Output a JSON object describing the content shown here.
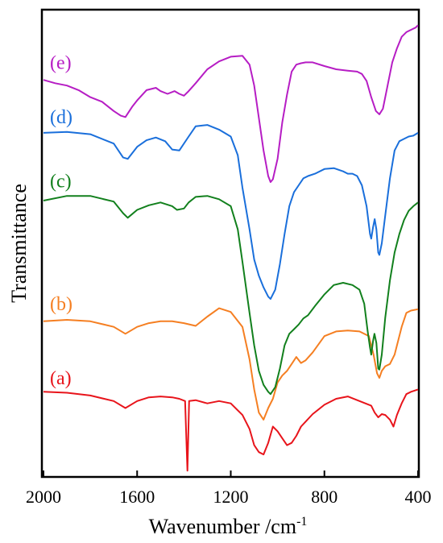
{
  "chart_data": {
    "type": "line",
    "title": "",
    "xlabel": "Wavenumber /cm-1",
    "xlabel_main": "Wavenumber /cm",
    "xlabel_sup": "-1",
    "ylabel": "Transmittance",
    "xlim": [
      2000,
      400
    ],
    "x_reversed": true,
    "x_ticks": [
      2000,
      1600,
      1200,
      800,
      400
    ],
    "y_ticks_shown": false,
    "grid": false,
    "legend": "inline labels at left",
    "series": [
      {
        "name": "(a)",
        "color": "#e8141b",
        "label_anchor": 0.825,
        "points": [
          [
            2000,
            0.82
          ],
          [
            1900,
            0.822
          ],
          [
            1800,
            0.828
          ],
          [
            1700,
            0.84
          ],
          [
            1650,
            0.855
          ],
          [
            1600,
            0.84
          ],
          [
            1550,
            0.832
          ],
          [
            1500,
            0.83
          ],
          [
            1450,
            0.832
          ],
          [
            1420,
            0.835
          ],
          [
            1395,
            0.84
          ],
          [
            1385,
            0.99
          ],
          [
            1378,
            0.84
          ],
          [
            1350,
            0.838
          ],
          [
            1300,
            0.845
          ],
          [
            1250,
            0.84
          ],
          [
            1200,
            0.845
          ],
          [
            1150,
            0.87
          ],
          [
            1120,
            0.9
          ],
          [
            1100,
            0.935
          ],
          [
            1080,
            0.95
          ],
          [
            1060,
            0.955
          ],
          [
            1040,
            0.93
          ],
          [
            1020,
            0.895
          ],
          [
            1000,
            0.905
          ],
          [
            980,
            0.92
          ],
          [
            960,
            0.935
          ],
          [
            940,
            0.93
          ],
          [
            920,
            0.915
          ],
          [
            900,
            0.895
          ],
          [
            850,
            0.868
          ],
          [
            800,
            0.848
          ],
          [
            750,
            0.835
          ],
          [
            700,
            0.83
          ],
          [
            650,
            0.84
          ],
          [
            600,
            0.85
          ],
          [
            585,
            0.865
          ],
          [
            570,
            0.875
          ],
          [
            555,
            0.868
          ],
          [
            540,
            0.87
          ],
          [
            520,
            0.88
          ],
          [
            505,
            0.895
          ],
          [
            490,
            0.87
          ],
          [
            470,
            0.845
          ],
          [
            450,
            0.825
          ],
          [
            430,
            0.82
          ],
          [
            400,
            0.815
          ]
        ]
      },
      {
        "name": "(b)",
        "color": "#f57f22",
        "label_anchor": 0.665,
        "points": [
          [
            2000,
            0.668
          ],
          [
            1900,
            0.665
          ],
          [
            1800,
            0.668
          ],
          [
            1700,
            0.68
          ],
          [
            1650,
            0.695
          ],
          [
            1600,
            0.68
          ],
          [
            1550,
            0.672
          ],
          [
            1500,
            0.668
          ],
          [
            1450,
            0.668
          ],
          [
            1400,
            0.672
          ],
          [
            1350,
            0.678
          ],
          [
            1300,
            0.658
          ],
          [
            1250,
            0.64
          ],
          [
            1200,
            0.648
          ],
          [
            1150,
            0.68
          ],
          [
            1120,
            0.75
          ],
          [
            1100,
            0.815
          ],
          [
            1080,
            0.865
          ],
          [
            1060,
            0.88
          ],
          [
            1040,
            0.855
          ],
          [
            1020,
            0.835
          ],
          [
            1000,
            0.8
          ],
          [
            980,
            0.785
          ],
          [
            960,
            0.775
          ],
          [
            940,
            0.76
          ],
          [
            920,
            0.745
          ],
          [
            900,
            0.758
          ],
          [
            880,
            0.752
          ],
          [
            850,
            0.735
          ],
          [
            800,
            0.7
          ],
          [
            750,
            0.69
          ],
          [
            700,
            0.688
          ],
          [
            650,
            0.69
          ],
          [
            610,
            0.7
          ],
          [
            590,
            0.74
          ],
          [
            575,
            0.78
          ],
          [
            565,
            0.79
          ],
          [
            555,
            0.775
          ],
          [
            540,
            0.765
          ],
          [
            520,
            0.76
          ],
          [
            500,
            0.74
          ],
          [
            470,
            0.68
          ],
          [
            450,
            0.65
          ],
          [
            430,
            0.645
          ],
          [
            400,
            0.642
          ]
        ]
      },
      {
        "name": "(c)",
        "color": "#12801d",
        "label_anchor": 0.4,
        "points": [
          [
            2000,
            0.408
          ],
          [
            1900,
            0.398
          ],
          [
            1800,
            0.398
          ],
          [
            1700,
            0.41
          ],
          [
            1660,
            0.435
          ],
          [
            1640,
            0.445
          ],
          [
            1600,
            0.428
          ],
          [
            1550,
            0.418
          ],
          [
            1500,
            0.412
          ],
          [
            1450,
            0.42
          ],
          [
            1430,
            0.428
          ],
          [
            1400,
            0.425
          ],
          [
            1380,
            0.412
          ],
          [
            1350,
            0.4
          ],
          [
            1300,
            0.398
          ],
          [
            1250,
            0.405
          ],
          [
            1200,
            0.42
          ],
          [
            1170,
            0.47
          ],
          [
            1150,
            0.54
          ],
          [
            1120,
            0.65
          ],
          [
            1100,
            0.72
          ],
          [
            1080,
            0.775
          ],
          [
            1060,
            0.805
          ],
          [
            1040,
            0.82
          ],
          [
            1030,
            0.825
          ],
          [
            1010,
            0.81
          ],
          [
            990,
            0.77
          ],
          [
            970,
            0.72
          ],
          [
            950,
            0.695
          ],
          [
            930,
            0.685
          ],
          [
            910,
            0.675
          ],
          [
            890,
            0.662
          ],
          [
            870,
            0.655
          ],
          [
            840,
            0.635
          ],
          [
            800,
            0.61
          ],
          [
            760,
            0.59
          ],
          [
            720,
            0.585
          ],
          [
            680,
            0.59
          ],
          [
            650,
            0.6
          ],
          [
            630,
            0.63
          ],
          [
            615,
            0.69
          ],
          [
            605,
            0.725
          ],
          [
            600,
            0.74
          ],
          [
            592,
            0.71
          ],
          [
            586,
            0.695
          ],
          [
            578,
            0.715
          ],
          [
            570,
            0.77
          ],
          [
            565,
            0.772
          ],
          [
            555,
            0.74
          ],
          [
            540,
            0.66
          ],
          [
            520,
            0.58
          ],
          [
            500,
            0.52
          ],
          [
            480,
            0.48
          ],
          [
            460,
            0.45
          ],
          [
            440,
            0.43
          ],
          [
            420,
            0.42
          ],
          [
            400,
            0.412
          ]
        ]
      },
      {
        "name": "(d)",
        "color": "#1a6fdb",
        "label_anchor": 0.262,
        "points": [
          [
            2000,
            0.262
          ],
          [
            1900,
            0.26
          ],
          [
            1800,
            0.265
          ],
          [
            1700,
            0.285
          ],
          [
            1660,
            0.315
          ],
          [
            1640,
            0.318
          ],
          [
            1600,
            0.292
          ],
          [
            1560,
            0.278
          ],
          [
            1520,
            0.272
          ],
          [
            1480,
            0.28
          ],
          [
            1450,
            0.298
          ],
          [
            1420,
            0.3
          ],
          [
            1380,
            0.27
          ],
          [
            1350,
            0.248
          ],
          [
            1300,
            0.245
          ],
          [
            1250,
            0.255
          ],
          [
            1200,
            0.27
          ],
          [
            1170,
            0.31
          ],
          [
            1150,
            0.38
          ],
          [
            1120,
            0.47
          ],
          [
            1100,
            0.535
          ],
          [
            1080,
            0.57
          ],
          [
            1060,
            0.595
          ],
          [
            1040,
            0.615
          ],
          [
            1030,
            0.62
          ],
          [
            1010,
            0.6
          ],
          [
            990,
            0.545
          ],
          [
            970,
            0.48
          ],
          [
            950,
            0.42
          ],
          [
            930,
            0.39
          ],
          [
            910,
            0.375
          ],
          [
            890,
            0.36
          ],
          [
            870,
            0.355
          ],
          [
            840,
            0.35
          ],
          [
            800,
            0.34
          ],
          [
            760,
            0.338
          ],
          [
            720,
            0.345
          ],
          [
            700,
            0.35
          ],
          [
            680,
            0.35
          ],
          [
            660,
            0.355
          ],
          [
            640,
            0.375
          ],
          [
            620,
            0.42
          ],
          [
            605,
            0.48
          ],
          [
            600,
            0.49
          ],
          [
            592,
            0.465
          ],
          [
            585,
            0.448
          ],
          [
            578,
            0.47
          ],
          [
            570,
            0.52
          ],
          [
            565,
            0.525
          ],
          [
            555,
            0.5
          ],
          [
            540,
            0.44
          ],
          [
            520,
            0.36
          ],
          [
            500,
            0.3
          ],
          [
            480,
            0.28
          ],
          [
            460,
            0.275
          ],
          [
            440,
            0.27
          ],
          [
            420,
            0.268
          ],
          [
            400,
            0.262
          ]
        ]
      },
      {
        "name": "(e)",
        "color": "#b61dc4",
        "label_anchor": 0.145,
        "points": [
          [
            2000,
            0.148
          ],
          [
            1950,
            0.155
          ],
          [
            1900,
            0.16
          ],
          [
            1850,
            0.17
          ],
          [
            1800,
            0.185
          ],
          [
            1750,
            0.195
          ],
          [
            1700,
            0.215
          ],
          [
            1670,
            0.225
          ],
          [
            1650,
            0.228
          ],
          [
            1620,
            0.205
          ],
          [
            1600,
            0.192
          ],
          [
            1560,
            0.17
          ],
          [
            1520,
            0.165
          ],
          [
            1500,
            0.172
          ],
          [
            1470,
            0.178
          ],
          [
            1440,
            0.172
          ],
          [
            1420,
            0.178
          ],
          [
            1400,
            0.182
          ],
          [
            1380,
            0.172
          ],
          [
            1350,
            0.155
          ],
          [
            1300,
            0.125
          ],
          [
            1250,
            0.108
          ],
          [
            1200,
            0.098
          ],
          [
            1150,
            0.096
          ],
          [
            1120,
            0.115
          ],
          [
            1100,
            0.16
          ],
          [
            1080,
            0.23
          ],
          [
            1060,
            0.3
          ],
          [
            1040,
            0.355
          ],
          [
            1030,
            0.368
          ],
          [
            1020,
            0.362
          ],
          [
            1000,
            0.318
          ],
          [
            980,
            0.24
          ],
          [
            960,
            0.18
          ],
          [
            940,
            0.13
          ],
          [
            920,
            0.115
          ],
          [
            900,
            0.112
          ],
          [
            880,
            0.11
          ],
          [
            850,
            0.11
          ],
          [
            800,
            0.118
          ],
          [
            750,
            0.125
          ],
          [
            700,
            0.128
          ],
          [
            660,
            0.13
          ],
          [
            640,
            0.135
          ],
          [
            620,
            0.15
          ],
          [
            600,
            0.185
          ],
          [
            580,
            0.215
          ],
          [
            565,
            0.222
          ],
          [
            550,
            0.21
          ],
          [
            530,
            0.16
          ],
          [
            510,
            0.11
          ],
          [
            490,
            0.08
          ],
          [
            470,
            0.055
          ],
          [
            450,
            0.045
          ],
          [
            430,
            0.04
          ],
          [
            410,
            0.035
          ],
          [
            400,
            0.03
          ]
        ]
      }
    ]
  }
}
